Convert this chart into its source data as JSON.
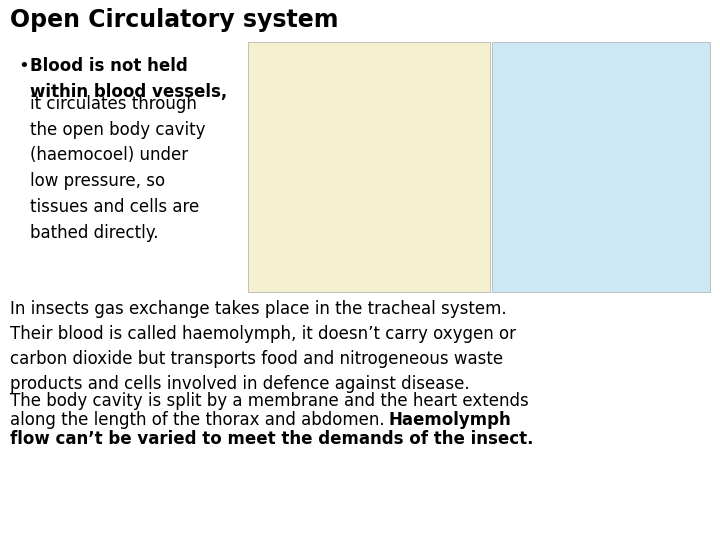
{
  "title": "Open Circulatory system",
  "title_fontsize": 17,
  "bullet_bold_text": "Blood is not held\nwithin blood vessels,",
  "bullet_normal_text": "it circulates through\nthe open body cavity\n(haemocoel) under\nlow pressure, so\ntissues and cells are\nbathed directly.",
  "paragraph1": "In insects gas exchange takes place in the tracheal system.\nTheir blood is called haemolymph, it doesn’t carry oxygen or\ncarbon dioxide but transports food and nitrogeneous waste\nproducts and cells involved in defence against disease.",
  "paragraph2_normal_line1": "The body cavity is split by a membrane and the heart extends",
  "paragraph2_normal_line2": "along the length of the thorax and abdomen. ",
  "paragraph2_bold_inline": "Haemolymph",
  "paragraph2_bold_line2": "flow can’t be varied to meet the demands of the insect.",
  "bg_color": "#ffffff",
  "text_color": "#000000",
  "body_fontsize": 12,
  "bullet_fontsize": 12,
  "left_box_color": "#f5f0d0",
  "right_box_color": "#cce8f4"
}
